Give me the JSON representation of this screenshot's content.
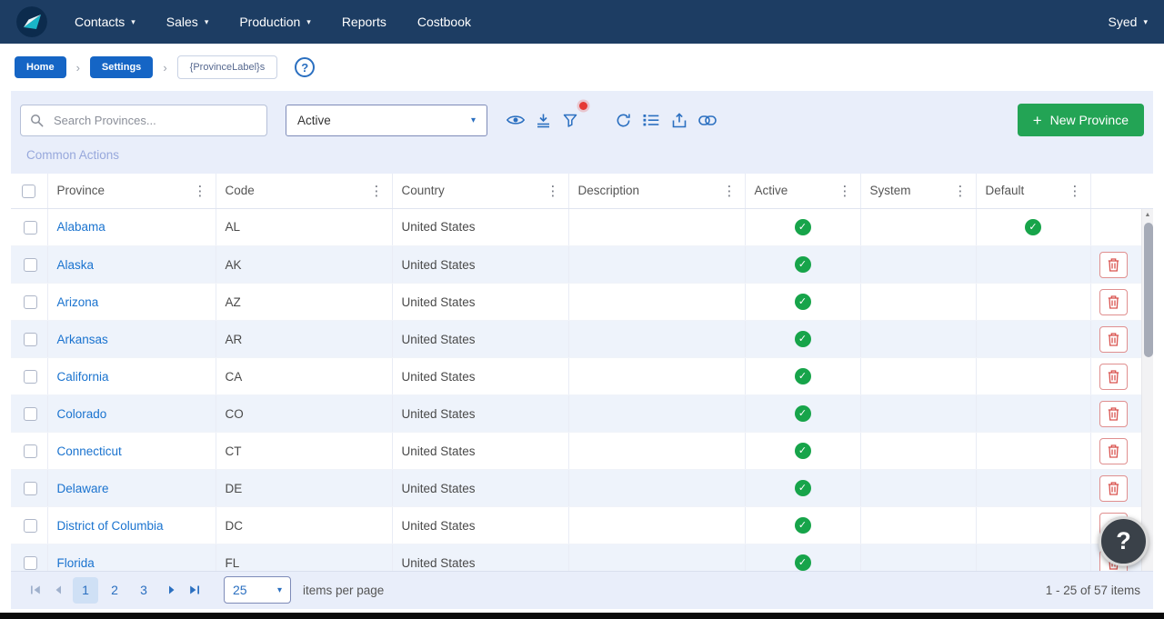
{
  "navbar": {
    "items": [
      {
        "label": "Contacts",
        "dropdown": true
      },
      {
        "label": "Sales",
        "dropdown": true
      },
      {
        "label": "Production",
        "dropdown": true
      },
      {
        "label": "Reports",
        "dropdown": false
      },
      {
        "label": "Costbook",
        "dropdown": false
      }
    ],
    "user": {
      "name": "Syed",
      "dropdown": true
    }
  },
  "breadcrumb": {
    "home": "Home",
    "settings": "Settings",
    "current": "{ProvinceLabel}s",
    "help_icon": "?"
  },
  "toolbar": {
    "search_placeholder": "Search Provinces...",
    "status_filter": "Active",
    "icons": [
      "eye-icon",
      "insert-column-icon",
      "filter-icon",
      "refresh-icon",
      "list-view-icon",
      "export-icon",
      "link-icon"
    ],
    "common_actions_label": "Common Actions",
    "new_button_label": "New Province"
  },
  "table": {
    "columns": [
      "Province",
      "Code",
      "Country",
      "Description",
      "Active",
      "System",
      "Default"
    ],
    "rows": [
      {
        "province": "Alabama",
        "code": "AL",
        "country": "United States",
        "description": "",
        "active": true,
        "system": false,
        "default": true,
        "deletable": false
      },
      {
        "province": "Alaska",
        "code": "AK",
        "country": "United States",
        "description": "",
        "active": true,
        "system": false,
        "default": false,
        "deletable": true
      },
      {
        "province": "Arizona",
        "code": "AZ",
        "country": "United States",
        "description": "",
        "active": true,
        "system": false,
        "default": false,
        "deletable": true
      },
      {
        "province": "Arkansas",
        "code": "AR",
        "country": "United States",
        "description": "",
        "active": true,
        "system": false,
        "default": false,
        "deletable": true
      },
      {
        "province": "California",
        "code": "CA",
        "country": "United States",
        "description": "",
        "active": true,
        "system": false,
        "default": false,
        "deletable": true
      },
      {
        "province": "Colorado",
        "code": "CO",
        "country": "United States",
        "description": "",
        "active": true,
        "system": false,
        "default": false,
        "deletable": true
      },
      {
        "province": "Connecticut",
        "code": "CT",
        "country": "United States",
        "description": "",
        "active": true,
        "system": false,
        "default": false,
        "deletable": true
      },
      {
        "province": "Delaware",
        "code": "DE",
        "country": "United States",
        "description": "",
        "active": true,
        "system": false,
        "default": false,
        "deletable": true
      },
      {
        "province": "District of Columbia",
        "code": "DC",
        "country": "United States",
        "description": "",
        "active": true,
        "system": false,
        "default": false,
        "deletable": true
      },
      {
        "province": "Florida",
        "code": "FL",
        "country": "United States",
        "description": "",
        "active": true,
        "system": false,
        "default": false,
        "deletable": true
      }
    ]
  },
  "pagination": {
    "pages": [
      "1",
      "2",
      "3"
    ],
    "current_page": "1",
    "page_size": "25",
    "items_per_page_label": "items per page",
    "range_summary": "1 - 25 of 57 items"
  },
  "help_button": {
    "label": "?"
  },
  "colors": {
    "navbar_bg": "#1d3d63",
    "accent_blue": "#2a6fc0",
    "button_green": "#23a455",
    "check_green": "#17a44a",
    "delete_red": "#d9534f",
    "panel_bg": "#e9eefa",
    "row_alt_bg": "#eef3fb"
  }
}
